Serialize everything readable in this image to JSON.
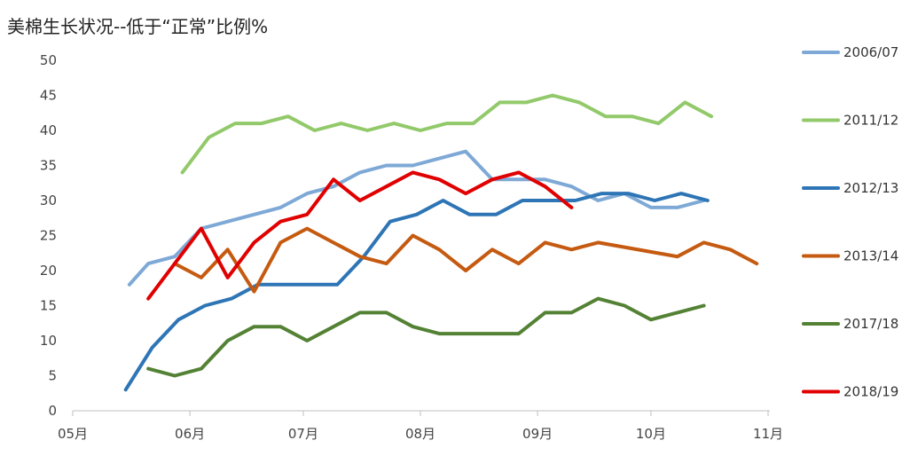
{
  "chart_data": {
    "type": "line",
    "title": "美棉生长状况--低于“正常”比例%",
    "xlabel": "",
    "ylabel": "",
    "ylim": [
      0,
      50
    ],
    "yticks": [
      0,
      5,
      10,
      15,
      20,
      25,
      30,
      35,
      40,
      45,
      50
    ],
    "xlim": [
      "2000-05-01",
      "2000-11-01"
    ],
    "xticks": [
      {
        "date": "2000-05-01",
        "label": "05月"
      },
      {
        "date": "2000-06-01",
        "label": "06月"
      },
      {
        "date": "2000-07-01",
        "label": "07月"
      },
      {
        "date": "2000-08-01",
        "label": "08月"
      },
      {
        "date": "2000-09-01",
        "label": "09月"
      },
      {
        "date": "2000-10-01",
        "label": "10月"
      },
      {
        "date": "2000-11-01",
        "label": "11月"
      }
    ],
    "grid": false,
    "legend_position": "right",
    "series": [
      {
        "name": "2006/07",
        "color": "#7ea9d6",
        "points": [
          [
            "2000-05-16",
            18
          ],
          [
            "2000-05-21",
            21
          ],
          [
            "2000-05-28",
            22
          ],
          [
            "2000-06-04",
            26
          ],
          [
            "2000-06-11",
            27
          ],
          [
            "2000-06-18",
            28
          ],
          [
            "2000-06-25",
            29
          ],
          [
            "2000-07-02",
            31
          ],
          [
            "2000-07-09",
            32
          ],
          [
            "2000-07-16",
            34
          ],
          [
            "2000-07-23",
            35
          ],
          [
            "2000-07-30",
            35
          ],
          [
            "2000-08-06",
            36
          ],
          [
            "2000-08-13",
            37
          ],
          [
            "2000-08-20",
            33
          ],
          [
            "2000-08-27",
            33
          ],
          [
            "2000-09-03",
            33
          ],
          [
            "2000-09-10",
            32
          ],
          [
            "2000-09-17",
            30
          ],
          [
            "2000-09-24",
            31
          ],
          [
            "2000-10-01",
            29
          ],
          [
            "2000-10-08",
            29
          ],
          [
            "2000-10-15",
            30
          ]
        ]
      },
      {
        "name": "2011/12",
        "color": "#92c96a",
        "points": [
          [
            "2000-05-30",
            34
          ],
          [
            "2000-06-06",
            39
          ],
          [
            "2000-06-13",
            41
          ],
          [
            "2000-06-20",
            41
          ],
          [
            "2000-06-27",
            42
          ],
          [
            "2000-07-04",
            40
          ],
          [
            "2000-07-11",
            41
          ],
          [
            "2000-07-18",
            40
          ],
          [
            "2000-07-25",
            41
          ],
          [
            "2000-08-01",
            40
          ],
          [
            "2000-08-08",
            41
          ],
          [
            "2000-08-15",
            41
          ],
          [
            "2000-08-22",
            44
          ],
          [
            "2000-08-29",
            44
          ],
          [
            "2000-09-05",
            45
          ],
          [
            "2000-09-12",
            44
          ],
          [
            "2000-09-19",
            42
          ],
          [
            "2000-09-26",
            42
          ],
          [
            "2000-10-03",
            41
          ],
          [
            "2000-10-10",
            44
          ],
          [
            "2000-10-17",
            42
          ]
        ]
      },
      {
        "name": "2012/13",
        "color": "#2e75b6",
        "points": [
          [
            "2000-05-15",
            3
          ],
          [
            "2000-05-22",
            9
          ],
          [
            "2000-05-29",
            13
          ],
          [
            "2000-06-05",
            15
          ],
          [
            "2000-06-12",
            16
          ],
          [
            "2000-06-19",
            18
          ],
          [
            "2000-06-26",
            18
          ],
          [
            "2000-07-03",
            18
          ],
          [
            "2000-07-10",
            18
          ],
          [
            "2000-07-17",
            22
          ],
          [
            "2000-07-24",
            27
          ],
          [
            "2000-07-31",
            28
          ],
          [
            "2000-08-07",
            30
          ],
          [
            "2000-08-14",
            28
          ],
          [
            "2000-08-21",
            28
          ],
          [
            "2000-08-28",
            30
          ],
          [
            "2000-09-04",
            30
          ],
          [
            "2000-09-11",
            30
          ],
          [
            "2000-09-18",
            31
          ],
          [
            "2000-09-25",
            31
          ],
          [
            "2000-10-02",
            30
          ],
          [
            "2000-10-09",
            31
          ],
          [
            "2000-10-16",
            30
          ]
        ]
      },
      {
        "name": "2013/14",
        "color": "#c55a11",
        "points": [
          [
            "2000-05-28",
            21
          ],
          [
            "2000-06-04",
            19
          ],
          [
            "2000-06-11",
            23
          ],
          [
            "2000-06-18",
            17
          ],
          [
            "2000-06-25",
            24
          ],
          [
            "2000-07-02",
            26
          ],
          [
            "2000-07-16",
            22
          ],
          [
            "2000-07-23",
            21
          ],
          [
            "2000-07-30",
            25
          ],
          [
            "2000-08-06",
            23
          ],
          [
            "2000-08-13",
            20
          ],
          [
            "2000-08-20",
            23
          ],
          [
            "2000-08-27",
            21
          ],
          [
            "2000-09-03",
            24
          ],
          [
            "2000-09-10",
            23
          ],
          [
            "2000-09-17",
            24
          ],
          [
            "2000-10-08",
            22
          ],
          [
            "2000-10-15",
            24
          ],
          [
            "2000-10-22",
            23
          ],
          [
            "2000-10-29",
            21
          ]
        ]
      },
      {
        "name": "2017/18",
        "color": "#548235",
        "points": [
          [
            "2000-05-21",
            6
          ],
          [
            "2000-05-28",
            5
          ],
          [
            "2000-06-04",
            6
          ],
          [
            "2000-06-11",
            10
          ],
          [
            "2000-06-18",
            12
          ],
          [
            "2000-06-25",
            12
          ],
          [
            "2000-07-02",
            10
          ],
          [
            "2000-07-09",
            12
          ],
          [
            "2000-07-16",
            14
          ],
          [
            "2000-07-23",
            14
          ],
          [
            "2000-07-30",
            12
          ],
          [
            "2000-08-06",
            11
          ],
          [
            "2000-08-13",
            11
          ],
          [
            "2000-08-20",
            11
          ],
          [
            "2000-08-27",
            11
          ],
          [
            "2000-09-03",
            14
          ],
          [
            "2000-09-10",
            14
          ],
          [
            "2000-09-17",
            16
          ],
          [
            "2000-09-24",
            15
          ],
          [
            "2000-10-01",
            13
          ],
          [
            "2000-10-08",
            14
          ],
          [
            "2000-10-15",
            15
          ]
        ]
      },
      {
        "name": "2018/19",
        "color": "#e00000",
        "points": [
          [
            "2000-05-21",
            16
          ],
          [
            "2000-05-28",
            21
          ],
          [
            "2000-06-04",
            26
          ],
          [
            "2000-06-11",
            19
          ],
          [
            "2000-06-18",
            24
          ],
          [
            "2000-06-25",
            27
          ],
          [
            "2000-07-02",
            28
          ],
          [
            "2000-07-09",
            33
          ],
          [
            "2000-07-16",
            30
          ],
          [
            "2000-07-23",
            32
          ],
          [
            "2000-07-30",
            34
          ],
          [
            "2000-08-06",
            33
          ],
          [
            "2000-08-13",
            31
          ],
          [
            "2000-08-20",
            33
          ],
          [
            "2000-08-27",
            34
          ],
          [
            "2000-09-03",
            32
          ],
          [
            "2000-09-10",
            29
          ]
        ]
      }
    ]
  }
}
